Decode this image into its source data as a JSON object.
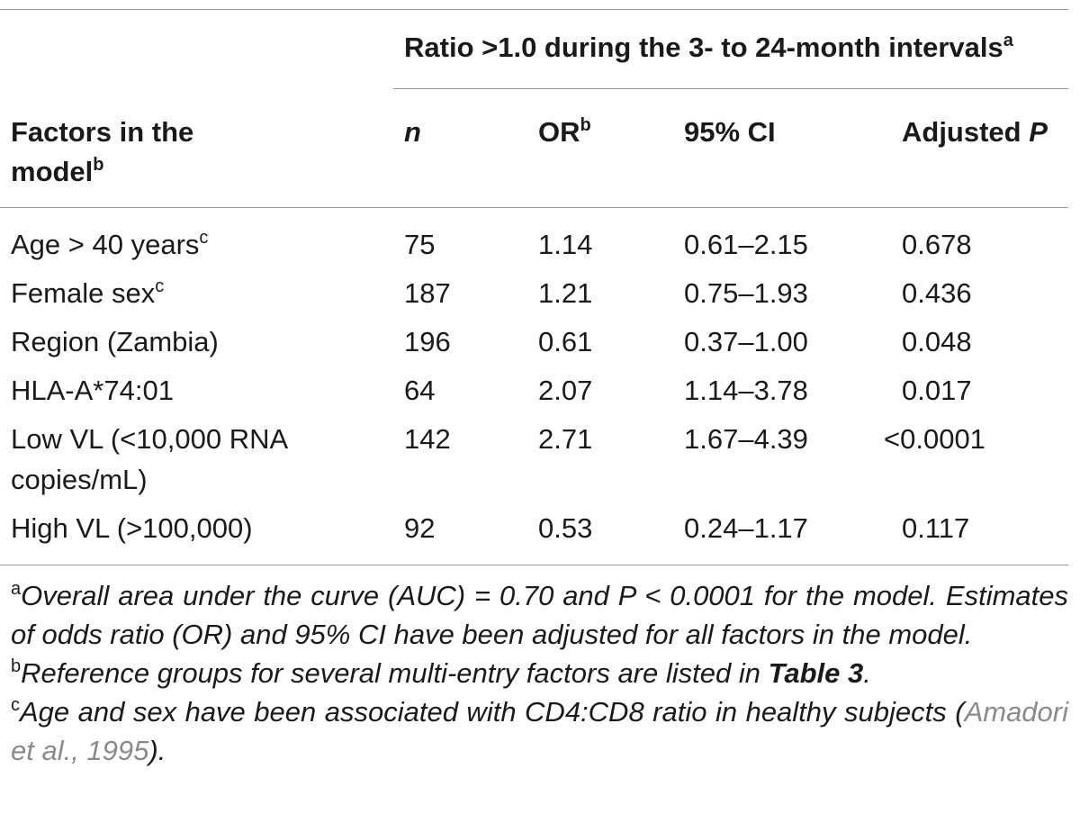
{
  "table": {
    "spanner": "Ratio >1.0 during the 3- to 24-month intervals",
    "spanner_sup": "a",
    "headers": {
      "factor_line1": "Factors in the",
      "factor_line2": "model",
      "factor_sup": "b",
      "n": "n",
      "or": "OR",
      "or_sup": "b",
      "ci": "95% CI",
      "p_prefix": "Adjusted ",
      "p_ital": "P"
    },
    "rows": [
      {
        "factor": "Age > 40 years",
        "factor_sup": "c",
        "n": "75",
        "or": "1.14",
        "ci": "0.61–2.15",
        "p": "0.678"
      },
      {
        "factor": "Female sex",
        "factor_sup": "c",
        "n": "187",
        "or": "1.21",
        "ci": "0.75–1.93",
        "p": "0.436"
      },
      {
        "factor": "Region (Zambia)",
        "n": "196",
        "or": "0.61",
        "ci": "0.37–1.00",
        "p": "0.048"
      },
      {
        "factor": "HLA-A*74:01",
        "n": "64",
        "or": "2.07",
        "ci": "1.14–3.78",
        "p": "0.017"
      },
      {
        "factor": "Low VL (<10,000 RNA",
        "factor_line2": "copies/mL)",
        "n": "142",
        "or": "2.71",
        "ci": "1.67–4.39",
        "p": "<0.0001"
      },
      {
        "factor": "High VL (>100,000)",
        "n": "92",
        "or": "0.53",
        "ci": "0.24–1.17",
        "p": "0.117"
      }
    ]
  },
  "footnotes": {
    "a_mark": "a",
    "a_text": "Overall area under the curve (AUC) = 0.70 and P < 0.0001 for the model. Estimates of odds ratio (OR) and 95% CI have been adjusted for all factors in the model.",
    "b_mark": "b",
    "b_text": "Reference groups for several multi-entry factors are listed in ",
    "b_bold": "Table 3",
    "b_end": ".",
    "c_mark": "c",
    "c_text": "Age and sex have been associated with CD4:CD8 ratio in healthy subjects (",
    "c_ref": "Amadori et al., 1995",
    "c_end": ")."
  }
}
